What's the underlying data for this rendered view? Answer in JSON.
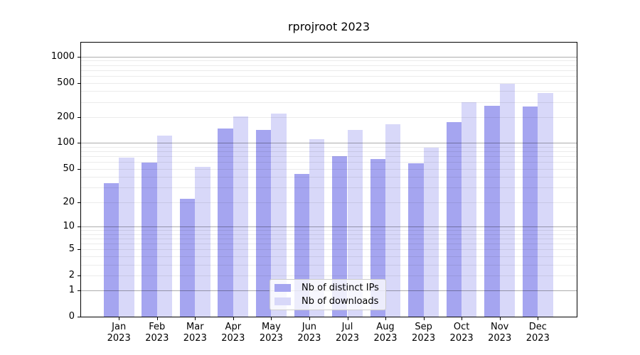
{
  "title": "rprojroot 2023",
  "chart_data": {
    "type": "bar",
    "title": "rprojroot 2023",
    "categories": [
      "Jan 2023",
      "Feb 2023",
      "Mar 2023",
      "Apr 2023",
      "May 2023",
      "Jun 2023",
      "Jul 2023",
      "Aug 2023",
      "Sep 2023",
      "Oct 2023",
      "Nov 2023",
      "Dec 2023"
    ],
    "x_tick_months": [
      "Jan",
      "Feb",
      "Mar",
      "Apr",
      "May",
      "Jun",
      "Jul",
      "Aug",
      "Sep",
      "Oct",
      "Nov",
      "Dec"
    ],
    "x_tick_year": "2023",
    "series": [
      {
        "name": "Nb of distinct IPs",
        "color": "#a5a5f0",
        "values": [
          34,
          59,
          22,
          148,
          143,
          43,
          70,
          65,
          58,
          175,
          272,
          267
        ]
      },
      {
        "name": "Nb of downloads",
        "color": "#d8d8f9",
        "values": [
          68,
          123,
          53,
          203,
          218,
          110,
          143,
          164,
          89,
          300,
          485,
          383
        ]
      }
    ],
    "xlabel": "",
    "ylabel": "",
    "y_scale": "log1p",
    "y_ticks": [
      0,
      1,
      2,
      5,
      10,
      20,
      50,
      100,
      200,
      500,
      1000
    ],
    "major_gridlines": [
      1,
      10,
      100,
      1000
    ],
    "ylim": [
      0,
      1460
    ],
    "grid": true,
    "legend_position": "lower center",
    "colors": {
      "distinct_ips": "#a5a5f0",
      "downloads": "#d8d8f9",
      "major_grid": "#adadad",
      "minor_grid": "#ebebeb",
      "axis": "#000000",
      "legend_border": "#cccccc"
    }
  }
}
